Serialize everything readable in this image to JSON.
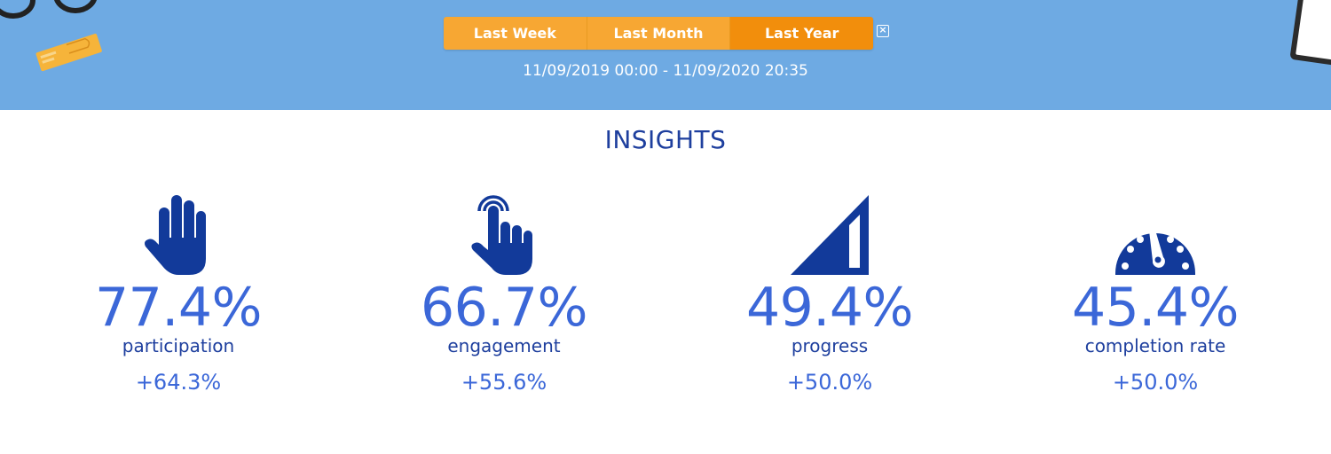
{
  "period_selector": {
    "options": [
      "Last Week",
      "Last Month",
      "Last Year"
    ],
    "selected": "Last Year"
  },
  "date_range": "11/09/2019 00:00 - 11/09/2020 20:35",
  "section_title": "INSIGHTS",
  "metrics": [
    {
      "icon": "raised-hand-icon",
      "value": "77.4%",
      "label": "participation",
      "change": "+64.3%"
    },
    {
      "icon": "tap-finger-icon",
      "value": "66.7%",
      "label": "engagement",
      "change": "+55.6%"
    },
    {
      "icon": "signal-bars-icon",
      "value": "49.4%",
      "label": "progress",
      "change": "+50.0%"
    },
    {
      "icon": "speedometer-icon",
      "value": "45.4%",
      "label": "completion rate",
      "change": "+50.0%"
    }
  ],
  "colors": {
    "header_bg": "#6eaae3",
    "button_orange": "#f7a733",
    "button_active": "#f28e0c",
    "title_navy": "#1e3f9e",
    "value_blue": "#3b67d8"
  }
}
